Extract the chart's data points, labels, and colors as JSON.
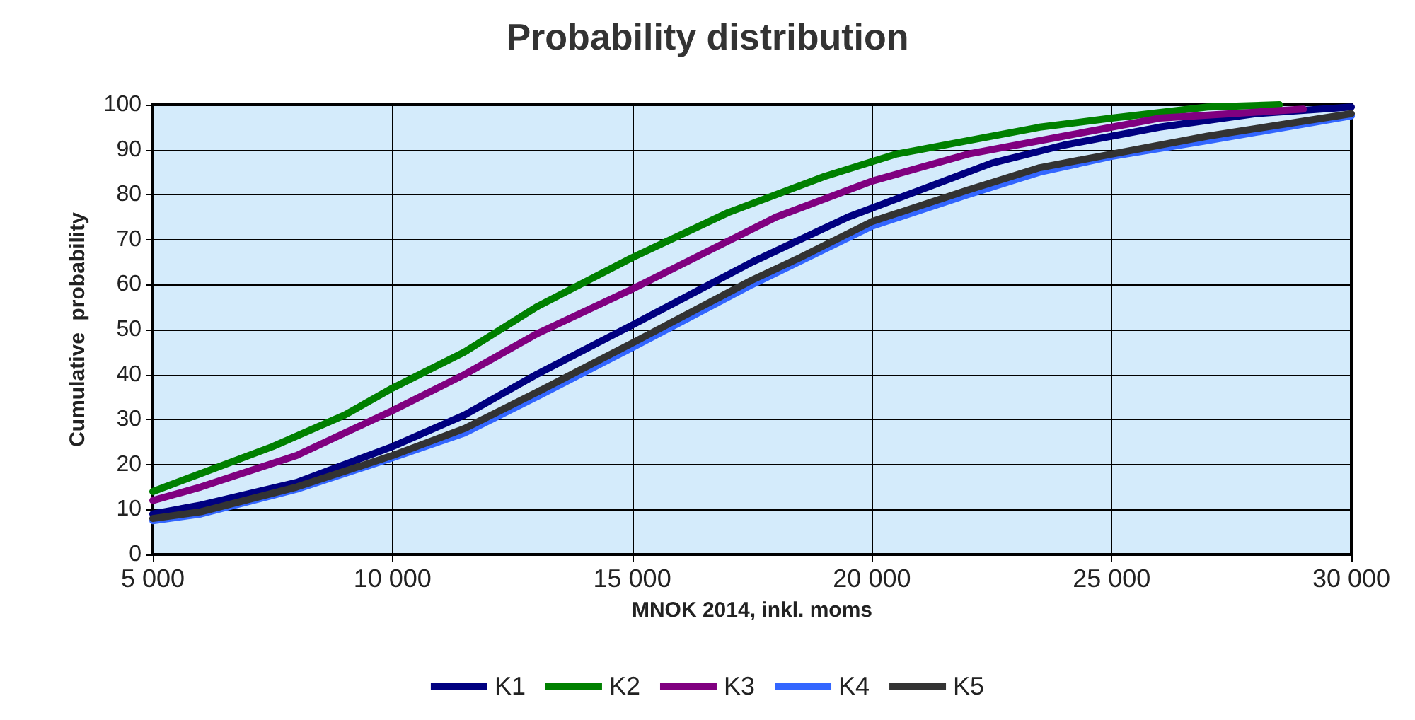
{
  "chart_data": {
    "type": "line",
    "title": "Probability distribution",
    "xlabel": "MNOK 2014, inkl. moms",
    "ylabel": "Cumulative  probability",
    "xlim": [
      5000,
      30000
    ],
    "xticks": [
      {
        "value": 5000,
        "label": "5 000"
      },
      {
        "value": 10000,
        "label": "10 000"
      },
      {
        "value": 15000,
        "label": "15 000"
      },
      {
        "value": 20000,
        "label": "20 000"
      },
      {
        "value": 25000,
        "label": "25 000"
      },
      {
        "value": 30000,
        "label": "30 000"
      }
    ],
    "ylim": [
      0,
      100
    ],
    "yticks": [
      0,
      10,
      20,
      30,
      40,
      50,
      60,
      70,
      80,
      90,
      100
    ],
    "grid": true,
    "legend": "bottom",
    "marker": "none",
    "line_style": "solid",
    "series": [
      {
        "name": "K1",
        "color": "#000080",
        "x": [
          5000,
          6000,
          8000,
          10000,
          11500,
          13000,
          15000,
          17500,
          19500,
          21000,
          22500,
          24000,
          26000,
          28000,
          30000
        ],
        "values": [
          9,
          11,
          16,
          24,
          31,
          40,
          51,
          65,
          75,
          81,
          87,
          91,
          95,
          98,
          99.5
        ]
      },
      {
        "name": "K2",
        "color": "#008000",
        "x": [
          5000,
          6000,
          7500,
          9000,
          10000,
          11500,
          13000,
          15000,
          17000,
          19000,
          20500,
          22000,
          23500,
          25000,
          27000,
          28500
        ],
        "values": [
          14,
          18,
          24,
          31,
          37,
          45,
          55,
          66,
          76,
          84,
          89,
          92,
          95,
          97,
          99.5,
          100
        ]
      },
      {
        "name": "K3",
        "color": "#800080",
        "x": [
          5000,
          6000,
          8000,
          10000,
          11500,
          13000,
          15000,
          16500,
          18000,
          20000,
          22000,
          24000,
          26000,
          29000
        ],
        "values": [
          12,
          15,
          22,
          32,
          40,
          49,
          59,
          67,
          75,
          83,
          89,
          93,
          97,
          99
        ]
      },
      {
        "name": "K4",
        "color": "#3366ff",
        "x": [
          5000,
          6000,
          8000,
          10000,
          11500,
          13000,
          15000,
          17500,
          20000,
          22000,
          23500,
          25000,
          27000,
          30000
        ],
        "values": [
          7.5,
          9,
          14.5,
          21.5,
          27,
          35,
          46,
          60,
          73,
          80,
          85,
          88.5,
          92,
          97.5
        ]
      },
      {
        "name": "K5",
        "color": "#333333",
        "x": [
          5000,
          6000,
          8000,
          10000,
          11500,
          13000,
          15000,
          17500,
          18500,
          20000,
          22000,
          23500,
          25000,
          27000,
          30000
        ],
        "values": [
          8,
          9.5,
          15,
          22,
          28,
          36,
          47,
          61,
          66,
          74,
          81,
          86,
          89,
          93,
          98
        ]
      }
    ]
  }
}
